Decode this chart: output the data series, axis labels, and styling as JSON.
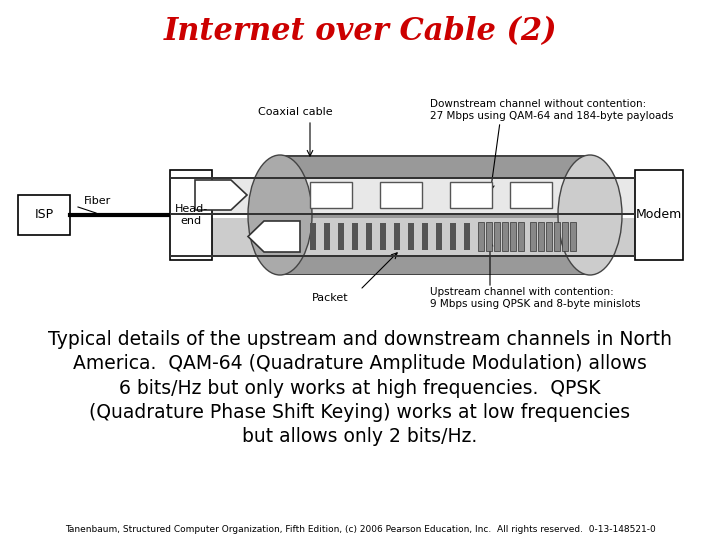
{
  "title": "Internet over Cable (2)",
  "title_color": "#CC0000",
  "title_fontsize": 22,
  "title_fontstyle": "italic",
  "body_text": "Typical details of the upstream and downstream channels in North\nAmerica.  QAM-64 (Quadrature Amplitude Modulation) allows\n6 bits/Hz but only works at high frequencies.  QPSK\n(Quadrature Phase Shift Keying) works at low frequencies\nbut allows only 2 bits/Hz.",
  "body_fontsize": 13.5,
  "body_color": "#000000",
  "footer_text": "Tanenbaum, Structured Computer Organization, Fifth Edition, (c) 2006 Pearson Education, Inc.  All rights reserved.  0-13-148521-0",
  "footer_fontsize": 6.5,
  "footer_color": "#000000",
  "bg_color": "#ffffff",
  "cable_color": "#aaaaaa",
  "cable_dark": "#888888",
  "diagram_labels": {
    "coaxial_cable": "Coaxial cable",
    "downstream_label": "Downstream channel without contention:\n27 Mbps using QAM-64 and 184-byte payloads",
    "upstream_label": "Upstream channel with contention:\n9 Mbps using QPSK and 8-byte minislots",
    "isp": "ISP",
    "fiber": "Fiber",
    "headend": "Head-\nend",
    "modem": "Modem",
    "packet": "Packet"
  }
}
